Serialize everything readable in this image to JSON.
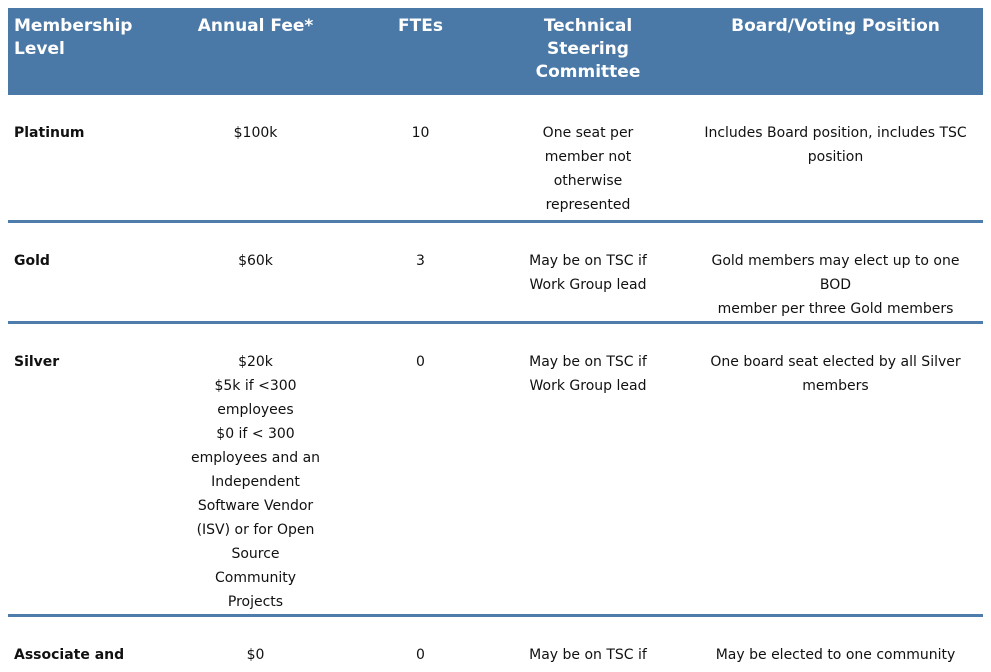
{
  "table": {
    "header_bg_color": "#4a79a7",
    "header_text_color": "#ffffff",
    "divider_color": "#4e7dab",
    "body_text_color": "#111111",
    "columns": [
      {
        "key": "level",
        "label": "Membership\nLevel",
        "align": "left"
      },
      {
        "key": "fee",
        "label": "Annual Fee*",
        "align": "center"
      },
      {
        "key": "ftes",
        "label": "FTEs",
        "align": "center"
      },
      {
        "key": "tsc",
        "label": "Technical\nSteering\nCommittee",
        "align": "center"
      },
      {
        "key": "board",
        "label": "Board/Voting Position",
        "align": "center"
      }
    ],
    "rows": [
      {
        "level": "Platinum",
        "fee": "$100k",
        "ftes": "10",
        "tsc": "One seat per\nmember not\notherwise\nrepresented",
        "board": "Includes Board position, includes TSC\nposition"
      },
      {
        "level": "Gold",
        "fee": "$60k",
        "ftes": "3",
        "tsc": "May be on TSC if\nWork Group lead",
        "board": "Gold members may elect up to one BOD\nmember per three Gold members"
      },
      {
        "level": "Silver",
        "fee": "$20k\n$5k if <300\nemployees\n$0 if < 300\nemployees and an\nIndependent\nSoftware Vendor\n(ISV) or for Open\nSource\nCommunity\nProjects",
        "ftes": "0",
        "tsc": "May be on TSC if\nWork Group lead",
        "board": "One board seat elected by all Silver\nmembers"
      },
      {
        "level": "Associate and\nAcademic",
        "fee": "$0",
        "ftes": "0",
        "tsc": "May be on TSC if\nWork Group lead",
        "board": "May be elected to one community\nobserver, non-voting Board seat"
      }
    ]
  }
}
